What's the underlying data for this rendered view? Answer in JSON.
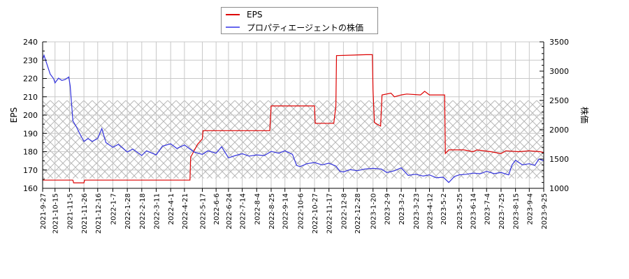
{
  "legend": {
    "items": [
      {
        "label": "EPS",
        "color": "#dd0000"
      },
      {
        "label": "プロパティエージェントの株価",
        "color": "#3333dd"
      }
    ]
  },
  "axes": {
    "left_title": "EPS",
    "right_title": "株価"
  },
  "chart_data": {
    "type": "line",
    "title": "",
    "xlabel": "",
    "ylabel": "EPS",
    "y2label": "株価",
    "ylim": [
      160,
      240
    ],
    "y2lim": [
      1000,
      3500
    ],
    "yticks": [
      160,
      170,
      180,
      190,
      200,
      210,
      220,
      230,
      240
    ],
    "y2ticks": [
      1000,
      1500,
      2000,
      2500,
      3000,
      3500
    ],
    "grid": true,
    "legend_position": "top-center",
    "x_tick_labels": [
      "2021-9-27",
      "2021-10-15",
      "2021-11-5",
      "2021-11-26",
      "2021-12-16",
      "2022-1-7",
      "2022-1-28",
      "2022-2-18",
      "2022-3-11",
      "2022-4-1",
      "2022-4-21",
      "2022-5-17",
      "2022-6-6",
      "2022-6-24",
      "2022-7-14",
      "2022-8-4",
      "2022-8-25",
      "2022-9-14",
      "2022-10-6",
      "2022-10-27",
      "2022-11-17",
      "2022-12-8",
      "2022-12-28",
      "2023-1-20",
      "2023-2-9",
      "2023-3-2",
      "2023-3-23",
      "2023-4-12",
      "2023-5-2",
      "2023-5-25",
      "2023-6-14",
      "2023-7-4",
      "2023-7-25",
      "2023-8-15",
      "2023-9-4",
      "2023-9-25"
    ],
    "shaded_band": {
      "axis": "y2",
      "from": 1170,
      "to": 2500,
      "style": "crosshatch"
    },
    "series": [
      {
        "name": "EPS",
        "axis": "left",
        "color": "#dd0000",
        "points": [
          [
            "2021-9-27",
            164.5
          ],
          [
            "2021-11-10",
            164.5
          ],
          [
            "2021-11-11",
            163
          ],
          [
            "2021-11-26",
            163
          ],
          [
            "2021-11-27",
            164.5
          ],
          [
            "2022-4-29",
            164.5
          ],
          [
            "2022-4-30",
            177
          ],
          [
            "2022-5-10",
            184
          ],
          [
            "2022-5-17",
            187
          ],
          [
            "2022-5-18",
            191.5
          ],
          [
            "2022-8-23",
            191.5
          ],
          [
            "2022-8-25",
            205
          ],
          [
            "2022-10-27",
            205
          ],
          [
            "2022-10-28",
            195.5
          ],
          [
            "2022-11-24",
            195.5
          ],
          [
            "2022-11-27",
            205
          ],
          [
            "2022-11-28",
            232.5
          ],
          [
            "2023-1-10",
            233
          ],
          [
            "2023-1-19",
            233
          ],
          [
            "2023-1-20",
            214
          ],
          [
            "2023-1-22",
            196
          ],
          [
            "2023-1-26",
            195
          ],
          [
            "2023-1-31",
            194
          ],
          [
            "2023-2-2",
            211
          ],
          [
            "2023-2-15",
            212
          ],
          [
            "2023-2-20",
            210
          ],
          [
            "2023-3-2",
            211
          ],
          [
            "2023-3-10",
            211.5
          ],
          [
            "2023-3-30",
            211
          ],
          [
            "2023-4-5",
            213
          ],
          [
            "2023-4-12",
            211
          ],
          [
            "2023-5-4",
            211
          ],
          [
            "2023-5-5",
            179
          ],
          [
            "2023-5-10",
            181
          ],
          [
            "2023-6-1",
            181
          ],
          [
            "2023-6-14",
            180
          ],
          [
            "2023-6-20",
            181
          ],
          [
            "2023-7-10",
            180
          ],
          [
            "2023-7-25",
            179
          ],
          [
            "2023-8-1",
            180.5
          ],
          [
            "2023-8-20",
            180
          ],
          [
            "2023-9-4",
            180.5
          ],
          [
            "2023-9-20",
            180
          ],
          [
            "2023-9-25",
            179.5
          ]
        ]
      },
      {
        "name": "プロパティエージェントの株価",
        "axis": "right",
        "color": "#3333dd",
        "points": [
          [
            "2021-9-27",
            3200
          ],
          [
            "2021-9-29",
            3270
          ],
          [
            "2021-10-1",
            3200
          ],
          [
            "2021-10-8",
            2950
          ],
          [
            "2021-10-13",
            2870
          ],
          [
            "2021-10-15",
            2800
          ],
          [
            "2021-10-20",
            2880
          ],
          [
            "2021-10-25",
            2840
          ],
          [
            "2021-10-30",
            2860
          ],
          [
            "2021-11-4",
            2900
          ],
          [
            "2021-11-6",
            2750
          ],
          [
            "2021-11-10",
            2150
          ],
          [
            "2021-11-15",
            2050
          ],
          [
            "2021-11-20",
            1930
          ],
          [
            "2021-11-26",
            1800
          ],
          [
            "2021-12-2",
            1850
          ],
          [
            "2021-12-8",
            1800
          ],
          [
            "2021-12-16",
            1850
          ],
          [
            "2021-12-22",
            2020
          ],
          [
            "2021-12-28",
            1780
          ],
          [
            "2022-1-7",
            1700
          ],
          [
            "2022-1-15",
            1750
          ],
          [
            "2022-1-28",
            1620
          ],
          [
            "2022-2-5",
            1670
          ],
          [
            "2022-2-18",
            1560
          ],
          [
            "2022-2-25",
            1640
          ],
          [
            "2022-3-11",
            1570
          ],
          [
            "2022-3-20",
            1720
          ],
          [
            "2022-4-1",
            1760
          ],
          [
            "2022-4-10",
            1680
          ],
          [
            "2022-4-21",
            1740
          ],
          [
            "2022-4-28",
            1680
          ],
          [
            "2022-5-5",
            1620
          ],
          [
            "2022-5-17",
            1580
          ],
          [
            "2022-5-25",
            1640
          ],
          [
            "2022-6-6",
            1600
          ],
          [
            "2022-6-14",
            1710
          ],
          [
            "2022-6-24",
            1520
          ],
          [
            "2022-7-4",
            1560
          ],
          [
            "2022-7-14",
            1590
          ],
          [
            "2022-7-24",
            1550
          ],
          [
            "2022-8-4",
            1570
          ],
          [
            "2022-8-15",
            1560
          ],
          [
            "2022-8-25",
            1630
          ],
          [
            "2022-9-5",
            1600
          ],
          [
            "2022-9-14",
            1640
          ],
          [
            "2022-9-25",
            1580
          ],
          [
            "2022-10-1",
            1390
          ],
          [
            "2022-10-6",
            1370
          ],
          [
            "2022-10-16",
            1420
          ],
          [
            "2022-10-27",
            1440
          ],
          [
            "2022-11-7",
            1400
          ],
          [
            "2022-11-17",
            1430
          ],
          [
            "2022-11-27",
            1380
          ],
          [
            "2022-12-3",
            1290
          ],
          [
            "2022-12-8",
            1280
          ],
          [
            "2022-12-18",
            1320
          ],
          [
            "2022-12-28",
            1300
          ],
          [
            "2023-1-8",
            1330
          ],
          [
            "2023-1-20",
            1340
          ],
          [
            "2023-2-1",
            1330
          ],
          [
            "2023-2-9",
            1270
          ],
          [
            "2023-2-20",
            1300
          ],
          [
            "2023-3-2",
            1350
          ],
          [
            "2023-3-12",
            1220
          ],
          [
            "2023-3-23",
            1240
          ],
          [
            "2023-4-3",
            1210
          ],
          [
            "2023-4-12",
            1230
          ],
          [
            "2023-4-22",
            1180
          ],
          [
            "2023-5-2",
            1190
          ],
          [
            "2023-5-10",
            1100
          ],
          [
            "2023-5-18",
            1200
          ],
          [
            "2023-5-25",
            1230
          ],
          [
            "2023-6-5",
            1240
          ],
          [
            "2023-6-14",
            1260
          ],
          [
            "2023-6-25",
            1250
          ],
          [
            "2023-7-4",
            1290
          ],
          [
            "2023-7-15",
            1250
          ],
          [
            "2023-7-25",
            1270
          ],
          [
            "2023-8-5",
            1230
          ],
          [
            "2023-8-10",
            1400
          ],
          [
            "2023-8-15",
            1480
          ],
          [
            "2023-8-25",
            1400
          ],
          [
            "2023-9-4",
            1420
          ],
          [
            "2023-9-12",
            1390
          ],
          [
            "2023-9-18",
            1500
          ],
          [
            "2023-9-25",
            1470
          ]
        ]
      }
    ]
  }
}
